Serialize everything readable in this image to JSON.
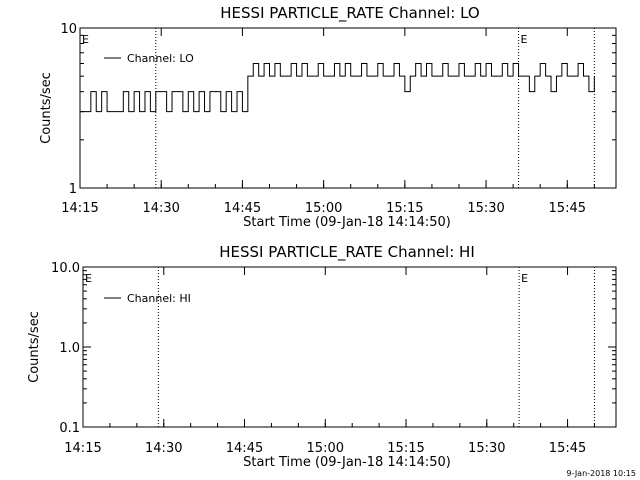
{
  "chart_data": [
    {
      "type": "line",
      "title": "HESSI PARTICLE_RATE Channel: LO",
      "xlabel": "Start Time (09-Jan-18 14:14:50)",
      "ylabel": "Counts/sec",
      "x_ticks": [
        "14:15",
        "14:30",
        "14:45",
        "15:00",
        "15:15",
        "15:30",
        "15:45"
      ],
      "y_ticks": [
        "1",
        "10"
      ],
      "y_scale": "log",
      "ylim": [
        1,
        10
      ],
      "xlim": [
        "14:15",
        "15:54"
      ],
      "legend": "top-left",
      "grid": false,
      "markers": [
        {
          "label": "E",
          "time": "14:15"
        },
        {
          "label": "",
          "time": "14:29"
        },
        {
          "label": "E",
          "time": "15:36"
        },
        {
          "label": "",
          "time": "15:50"
        }
      ],
      "series": [
        {
          "name": "Channel: LO",
          "color": "#000000",
          "x": [
            "14:15",
            "14:16",
            "14:17",
            "14:18",
            "14:19",
            "14:20",
            "14:21",
            "14:22",
            "14:23",
            "14:24",
            "14:25",
            "14:26",
            "14:27",
            "14:28",
            "14:29",
            "14:30",
            "14:31",
            "14:32",
            "14:33",
            "14:34",
            "14:35",
            "14:36",
            "14:37",
            "14:38",
            "14:39",
            "14:40",
            "14:41",
            "14:42",
            "14:43",
            "14:44",
            "14:45",
            "14:46",
            "14:47",
            "14:48",
            "14:49",
            "14:50",
            "14:51",
            "14:52",
            "14:53",
            "14:54",
            "14:55",
            "14:56",
            "14:57",
            "14:58",
            "14:59",
            "15:00",
            "15:01",
            "15:02",
            "15:03",
            "15:04",
            "15:05",
            "15:06",
            "15:07",
            "15:08",
            "15:09",
            "15:10",
            "15:11",
            "15:12",
            "15:13",
            "15:14",
            "15:15",
            "15:16",
            "15:17",
            "15:18",
            "15:19",
            "15:20",
            "15:21",
            "15:22",
            "15:23",
            "15:24",
            "15:25",
            "15:26",
            "15:27",
            "15:28",
            "15:29",
            "15:30",
            "15:31",
            "15:32",
            "15:33",
            "15:34",
            "15:35",
            "15:36",
            "15:37",
            "15:38",
            "15:39",
            "15:40",
            "15:41",
            "15:42",
            "15:43",
            "15:44",
            "15:45",
            "15:46",
            "15:47",
            "15:48",
            "15:49",
            "15:50"
          ],
          "values": [
            3,
            3,
            4,
            3,
            4,
            3,
            3,
            3,
            4,
            3,
            4,
            3,
            4,
            3,
            4,
            4,
            3,
            4,
            4,
            3,
            4,
            3,
            4,
            3,
            4,
            4,
            3,
            4,
            3,
            4,
            3,
            5,
            6,
            5,
            6,
            5,
            6,
            5,
            5,
            6,
            5,
            6,
            5,
            5,
            6,
            5,
            5,
            6,
            5,
            6,
            5,
            5,
            6,
            5,
            5,
            6,
            5,
            5,
            6,
            5,
            4,
            5,
            6,
            5,
            6,
            5,
            5,
            6,
            5,
            5,
            6,
            5,
            5,
            6,
            5,
            6,
            5,
            5,
            6,
            5,
            6,
            5,
            5,
            4,
            5,
            6,
            5,
            4,
            5,
            6,
            5,
            5,
            6,
            5,
            4,
            5
          ]
        }
      ]
    },
    {
      "type": "line",
      "title": "HESSI PARTICLE_RATE Channel: HI",
      "xlabel": "Start Time (09-Jan-18 14:14:50)",
      "ylabel": "Counts/sec",
      "x_ticks": [
        "14:15",
        "14:30",
        "14:45",
        "15:00",
        "15:15",
        "15:30",
        "15:45"
      ],
      "y_ticks": [
        "0.1",
        "1.0",
        "10.0"
      ],
      "y_scale": "log",
      "ylim": [
        0.1,
        10
      ],
      "xlim": [
        "14:15",
        "15:54"
      ],
      "legend": "top-left",
      "grid": false,
      "markers": [
        {
          "label": "E",
          "time": "14:15"
        },
        {
          "label": "",
          "time": "14:29"
        },
        {
          "label": "E",
          "time": "15:36"
        },
        {
          "label": "",
          "time": "15:50"
        }
      ],
      "series": [
        {
          "name": "Channel: HI",
          "color": "#000000",
          "x": [],
          "values": []
        }
      ]
    }
  ],
  "footer": {
    "timestamp": "9-Jan-2018 10:15"
  }
}
